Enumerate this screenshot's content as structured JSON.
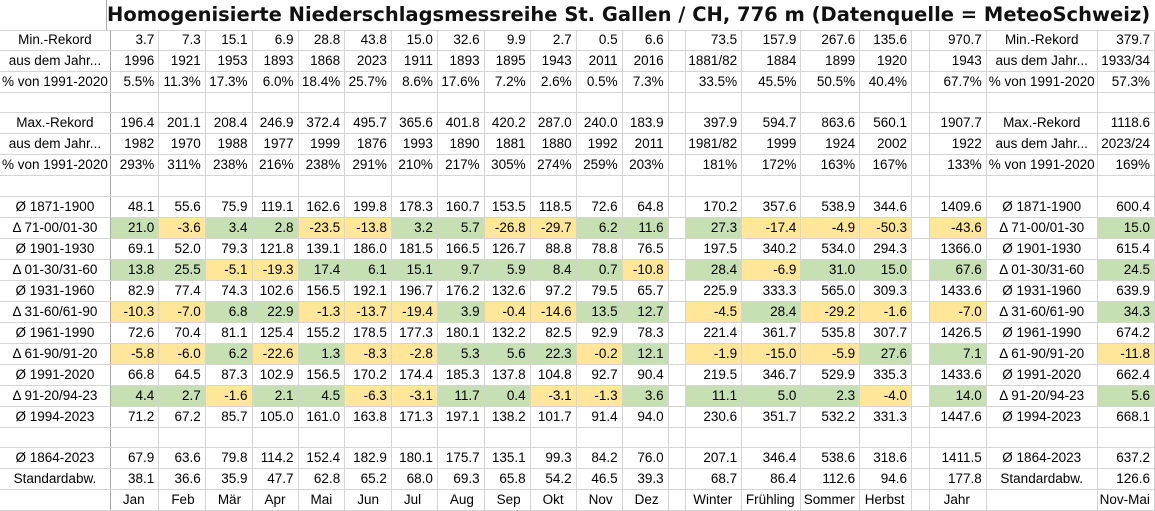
{
  "title": "Homogenisierte Niederschlagsmessreihe St. Gallen / CH, 776 m (Datenquelle = MeteoSchweiz)",
  "columns": [
    "Jan",
    "Feb",
    "Mär",
    "Apr",
    "Mai",
    "Jun",
    "Jul",
    "Aug",
    "Sep",
    "Okt",
    "Nov",
    "Dez",
    "",
    "Winter",
    "Frühling",
    "Sommer",
    "Herbst",
    "",
    "Jahr",
    "",
    "Nov-Mai"
  ],
  "rows": [
    {
      "label": "Min.-Rekord",
      "months": [
        "3.7",
        "7.3",
        "15.1",
        "6.9",
        "28.8",
        "43.8",
        "15.0",
        "32.6",
        "9.9",
        "2.7",
        "0.5",
        "6.6"
      ],
      "seasons": [
        "73.5",
        "157.9",
        "267.6",
        "135.6"
      ],
      "year": "970.7",
      "label2": "Min.-Rekord",
      "novmai": "379.7",
      "style": "plain"
    },
    {
      "label": "aus dem Jahr...",
      "months": [
        "1996",
        "1921",
        "1953",
        "1893",
        "1868",
        "2023",
        "1911",
        "1893",
        "1895",
        "1943",
        "2011",
        "2016"
      ],
      "seasons": [
        "1881/82",
        "1884",
        "1899",
        "1920"
      ],
      "year": "1943",
      "label2": "aus dem Jahr...",
      "novmai": "1933/34",
      "style": "plain"
    },
    {
      "label": "% von 1991-2020",
      "months": [
        "5.5%",
        "11.3%",
        "17.3%",
        "6.0%",
        "18.4%",
        "25.7%",
        "8.6%",
        "17.6%",
        "7.2%",
        "2.6%",
        "0.5%",
        "7.3%"
      ],
      "seasons": [
        "33.5%",
        "45.5%",
        "50.5%",
        "40.4%"
      ],
      "year": "67.7%",
      "label2": "% von 1991-2020",
      "novmai": "57.3%",
      "style": "plain"
    },
    {
      "blank": true
    },
    {
      "label": "Max.-Rekord",
      "months": [
        "196.4",
        "201.1",
        "208.4",
        "246.9",
        "372.4",
        "495.7",
        "365.6",
        "401.8",
        "420.2",
        "287.0",
        "240.0",
        "183.9"
      ],
      "seasons": [
        "397.9",
        "594.7",
        "863.6",
        "560.1"
      ],
      "year": "1907.7",
      "label2": "Max.-Rekord",
      "novmai": "1118.6",
      "style": "plain"
    },
    {
      "label": "aus dem Jahr...",
      "months": [
        "1982",
        "1970",
        "1988",
        "1977",
        "1999",
        "1876",
        "1993",
        "1890",
        "1881",
        "1880",
        "1992",
        "2011"
      ],
      "seasons": [
        "1981/82",
        "1999",
        "1924",
        "2002"
      ],
      "year": "1922",
      "label2": "aus dem Jahr...",
      "novmai": "2023/24",
      "style": "plain"
    },
    {
      "label": "% von 1991-2020",
      "months": [
        "293%",
        "311%",
        "238%",
        "216%",
        "238%",
        "291%",
        "210%",
        "217%",
        "305%",
        "274%",
        "259%",
        "203%"
      ],
      "seasons": [
        "181%",
        "172%",
        "163%",
        "167%"
      ],
      "year": "133%",
      "label2": "% von 1991-2020",
      "novmai": "169%",
      "style": "plain"
    },
    {
      "blank": true
    },
    {
      "label": "Ø 1871-1900",
      "months": [
        "48.1",
        "55.6",
        "75.9",
        "119.1",
        "162.6",
        "199.8",
        "178.3",
        "160.7",
        "153.5",
        "118.5",
        "72.6",
        "64.8"
      ],
      "seasons": [
        "170.2",
        "357.6",
        "538.9",
        "344.6"
      ],
      "year": "1409.6",
      "label2": "Ø 1871-1900",
      "novmai": "600.4",
      "style": "plain"
    },
    {
      "label": "Δ 71-00/01-30",
      "months": [
        "21.0",
        "-3.6",
        "3.4",
        "2.8",
        "-23.5",
        "-13.8",
        "3.2",
        "5.7",
        "-26.8",
        "-29.7",
        "6.2",
        "11.6"
      ],
      "seasons": [
        "27.3",
        "-17.4",
        "-4.9",
        "-50.3"
      ],
      "year": "-43.6",
      "label2": "Δ 71-00/01-30",
      "novmai": "15.0",
      "style": "delta"
    },
    {
      "label": "Ø 1901-1930",
      "months": [
        "69.1",
        "52.0",
        "79.3",
        "121.8",
        "139.1",
        "186.0",
        "181.5",
        "166.5",
        "126.7",
        "88.8",
        "78.8",
        "76.5"
      ],
      "seasons": [
        "197.5",
        "340.2",
        "534.0",
        "294.3"
      ],
      "year": "1366.0",
      "label2": "Ø 1901-1930",
      "novmai": "615.4",
      "style": "plain"
    },
    {
      "label": "Δ 01-30/31-60",
      "months": [
        "13.8",
        "25.5",
        "-5.1",
        "-19.3",
        "17.4",
        "6.1",
        "15.1",
        "9.7",
        "5.9",
        "8.4",
        "0.7",
        "-10.8"
      ],
      "seasons": [
        "28.4",
        "-6.9",
        "31.0",
        "15.0"
      ],
      "year": "67.6",
      "label2": "Δ 01-30/31-60",
      "novmai": "24.5",
      "style": "delta"
    },
    {
      "label": "Ø 1931-1960",
      "months": [
        "82.9",
        "77.4",
        "74.3",
        "102.6",
        "156.5",
        "192.1",
        "196.7",
        "176.2",
        "132.6",
        "97.2",
        "79.5",
        "65.7"
      ],
      "seasons": [
        "225.9",
        "333.3",
        "565.0",
        "309.3"
      ],
      "year": "1433.6",
      "label2": "Ø 1931-1960",
      "novmai": "639.9",
      "style": "plain"
    },
    {
      "label": "Δ 31-60/61-90",
      "months": [
        "-10.3",
        "-7.0",
        "6.8",
        "22.9",
        "-1.3",
        "-13.7",
        "-19.4",
        "3.9",
        "-0.4",
        "-14.6",
        "13.5",
        "12.7"
      ],
      "seasons": [
        "-4.5",
        "28.4",
        "-29.2",
        "-1.6"
      ],
      "year": "-7.0",
      "label2": "Δ 31-60/61-90",
      "novmai": "34.3",
      "style": "delta"
    },
    {
      "label": "Ø 1961-1990",
      "months": [
        "72.6",
        "70.4",
        "81.1",
        "125.4",
        "155.2",
        "178.5",
        "177.3",
        "180.1",
        "132.2",
        "82.5",
        "92.9",
        "78.3"
      ],
      "seasons": [
        "221.4",
        "361.7",
        "535.8",
        "307.7"
      ],
      "year": "1426.5",
      "label2": "Ø 1961-1990",
      "novmai": "674.2",
      "style": "plain"
    },
    {
      "label": "Δ 61-90/91-20",
      "months": [
        "-5.8",
        "-6.0",
        "6.2",
        "-22.6",
        "1.3",
        "-8.3",
        "-2.8",
        "5.3",
        "5.6",
        "22.3",
        "-0.2",
        "12.1"
      ],
      "seasons": [
        "-1.9",
        "-15.0",
        "-5.9",
        "27.6"
      ],
      "year": "7.1",
      "label2": "Δ 61-90/91-20",
      "novmai": "-11.8",
      "style": "delta"
    },
    {
      "label": "Ø 1991-2020",
      "months": [
        "66.8",
        "64.5",
        "87.3",
        "102.9",
        "156.5",
        "170.2",
        "174.4",
        "185.3",
        "137.8",
        "104.8",
        "92.7",
        "90.4"
      ],
      "seasons": [
        "219.5",
        "346.7",
        "529.9",
        "335.3"
      ],
      "year": "1433.6",
      "label2": "Ø 1991-2020",
      "novmai": "662.4",
      "style": "plain"
    },
    {
      "label": "Δ 91-20/94-23",
      "months": [
        "4.4",
        "2.7",
        "-1.6",
        "2.1",
        "4.5",
        "-6.3",
        "-3.1",
        "11.7",
        "0.4",
        "-3.1",
        "-1.3",
        "3.6"
      ],
      "seasons": [
        "11.1",
        "5.0",
        "2.3",
        "-4.0"
      ],
      "year": "14.0",
      "label2": "Δ 91-20/94-23",
      "novmai": "5.6",
      "style": "delta"
    },
    {
      "label": "Ø 1994-2023",
      "months": [
        "71.2",
        "67.2",
        "85.7",
        "105.0",
        "161.0",
        "163.8",
        "171.3",
        "197.1",
        "138.2",
        "101.7",
        "91.4",
        "94.0"
      ],
      "seasons": [
        "230.6",
        "351.7",
        "532.2",
        "331.3"
      ],
      "year": "1447.6",
      "label2": "Ø 1994-2023",
      "novmai": "668.1",
      "style": "plain"
    },
    {
      "blank": true
    },
    {
      "label": "Ø 1864-2023",
      "months": [
        "67.9",
        "63.6",
        "79.8",
        "114.2",
        "152.4",
        "182.9",
        "180.1",
        "175.7",
        "135.1",
        "99.3",
        "84.2",
        "76.0"
      ],
      "seasons": [
        "207.1",
        "346.4",
        "538.6",
        "318.6"
      ],
      "year": "1411.5",
      "label2": "Ø 1864-2023",
      "novmai": "637.2",
      "style": "plain"
    },
    {
      "label": "Standardabw.",
      "months": [
        "38.1",
        "36.6",
        "35.9",
        "47.7",
        "62.8",
        "65.2",
        "68.0",
        "69.3",
        "65.8",
        "54.2",
        "46.5",
        "39.3"
      ],
      "seasons": [
        "68.7",
        "86.4",
        "112.6",
        "94.6"
      ],
      "year": "177.8",
      "label2": "Standardabw.",
      "novmai": "126.6",
      "style": "plain"
    }
  ],
  "footer": {
    "months": [
      "Jan",
      "Feb",
      "Mär",
      "Apr",
      "Mai",
      "Jun",
      "Jul",
      "Aug",
      "Sep",
      "Okt",
      "Nov",
      "Dez"
    ],
    "seasons": [
      "Winter",
      "Frühling",
      "Sommer",
      "Herbst"
    ],
    "year": "Jahr",
    "novmai": "Nov-Mai"
  },
  "colors": {
    "positive": "#c6e0b4",
    "negative": "#ffe699",
    "grid": "#d4d4d4"
  }
}
